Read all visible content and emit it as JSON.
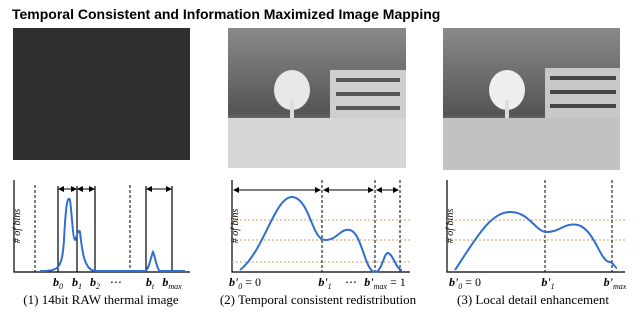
{
  "title": "Temporal Consistent and Information Maximized Image Mapping",
  "panels": [
    {
      "caption": "(1) 14bit RAW thermal image",
      "y_label": "# of bins",
      "ticks": [
        {
          "base": "b",
          "sub": "0"
        },
        {
          "base": "b",
          "sub": "1"
        },
        {
          "base": "b",
          "sub": "2"
        },
        {
          "text": "⋯"
        },
        {
          "base": "b",
          "sub": "t"
        },
        {
          "base": "b",
          "sub": "max"
        }
      ]
    },
    {
      "caption": "(2) Temporal consistent redistribution",
      "y_label": "# of bins",
      "ticks": [
        {
          "base": "b'",
          "sub": "0",
          "suffix": " = 0"
        },
        {
          "base": "b'",
          "sub": "1"
        },
        {
          "text": "⋯"
        },
        {
          "base": "b'",
          "sub": "max",
          "suffix": " = 1"
        }
      ]
    },
    {
      "caption": "(3) Local detail enhancement",
      "y_label": "# of bins",
      "ticks": [
        {
          "base": "b'",
          "sub": "0",
          "suffix": " = 0"
        },
        {
          "base": "b'",
          "sub": "1"
        },
        {
          "base": "b'",
          "sub": "max"
        }
      ]
    }
  ]
}
